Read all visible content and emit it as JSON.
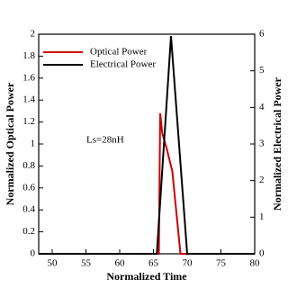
{
  "chart_data": {
    "type": "line",
    "x_label": "Normalized Time",
    "y_label": "Normalized Optical Power",
    "y2_label": "Normalized Electrical Power",
    "annotation": "Ls=28nH",
    "xlim": [
      48,
      80
    ],
    "xticks": [
      50,
      55,
      60,
      65,
      70,
      75,
      80
    ],
    "ylim": [
      0,
      2
    ],
    "yticks": [
      0,
      0.2,
      0.4,
      0.6,
      0.8,
      1,
      1.2,
      1.4,
      1.6,
      1.8,
      2
    ],
    "y2lim": [
      0,
      6
    ],
    "y2ticks": [
      0,
      1,
      2,
      3,
      4,
      5,
      6
    ],
    "series": [
      {
        "name": "Optical Power",
        "color": "#cc0000",
        "x": [
          48,
          65.8,
          66,
          66.3,
          67,
          67.8,
          69,
          80
        ],
        "values": [
          0,
          0,
          1.28,
          1.1,
          0.95,
          0.75,
          0,
          0
        ]
      },
      {
        "name": "Electrical Power",
        "color": "#000000",
        "axis": "y2",
        "x": [
          48,
          65.5,
          67.6,
          70,
          80
        ],
        "values": [
          0,
          0,
          5.95,
          0,
          0
        ]
      }
    ]
  }
}
